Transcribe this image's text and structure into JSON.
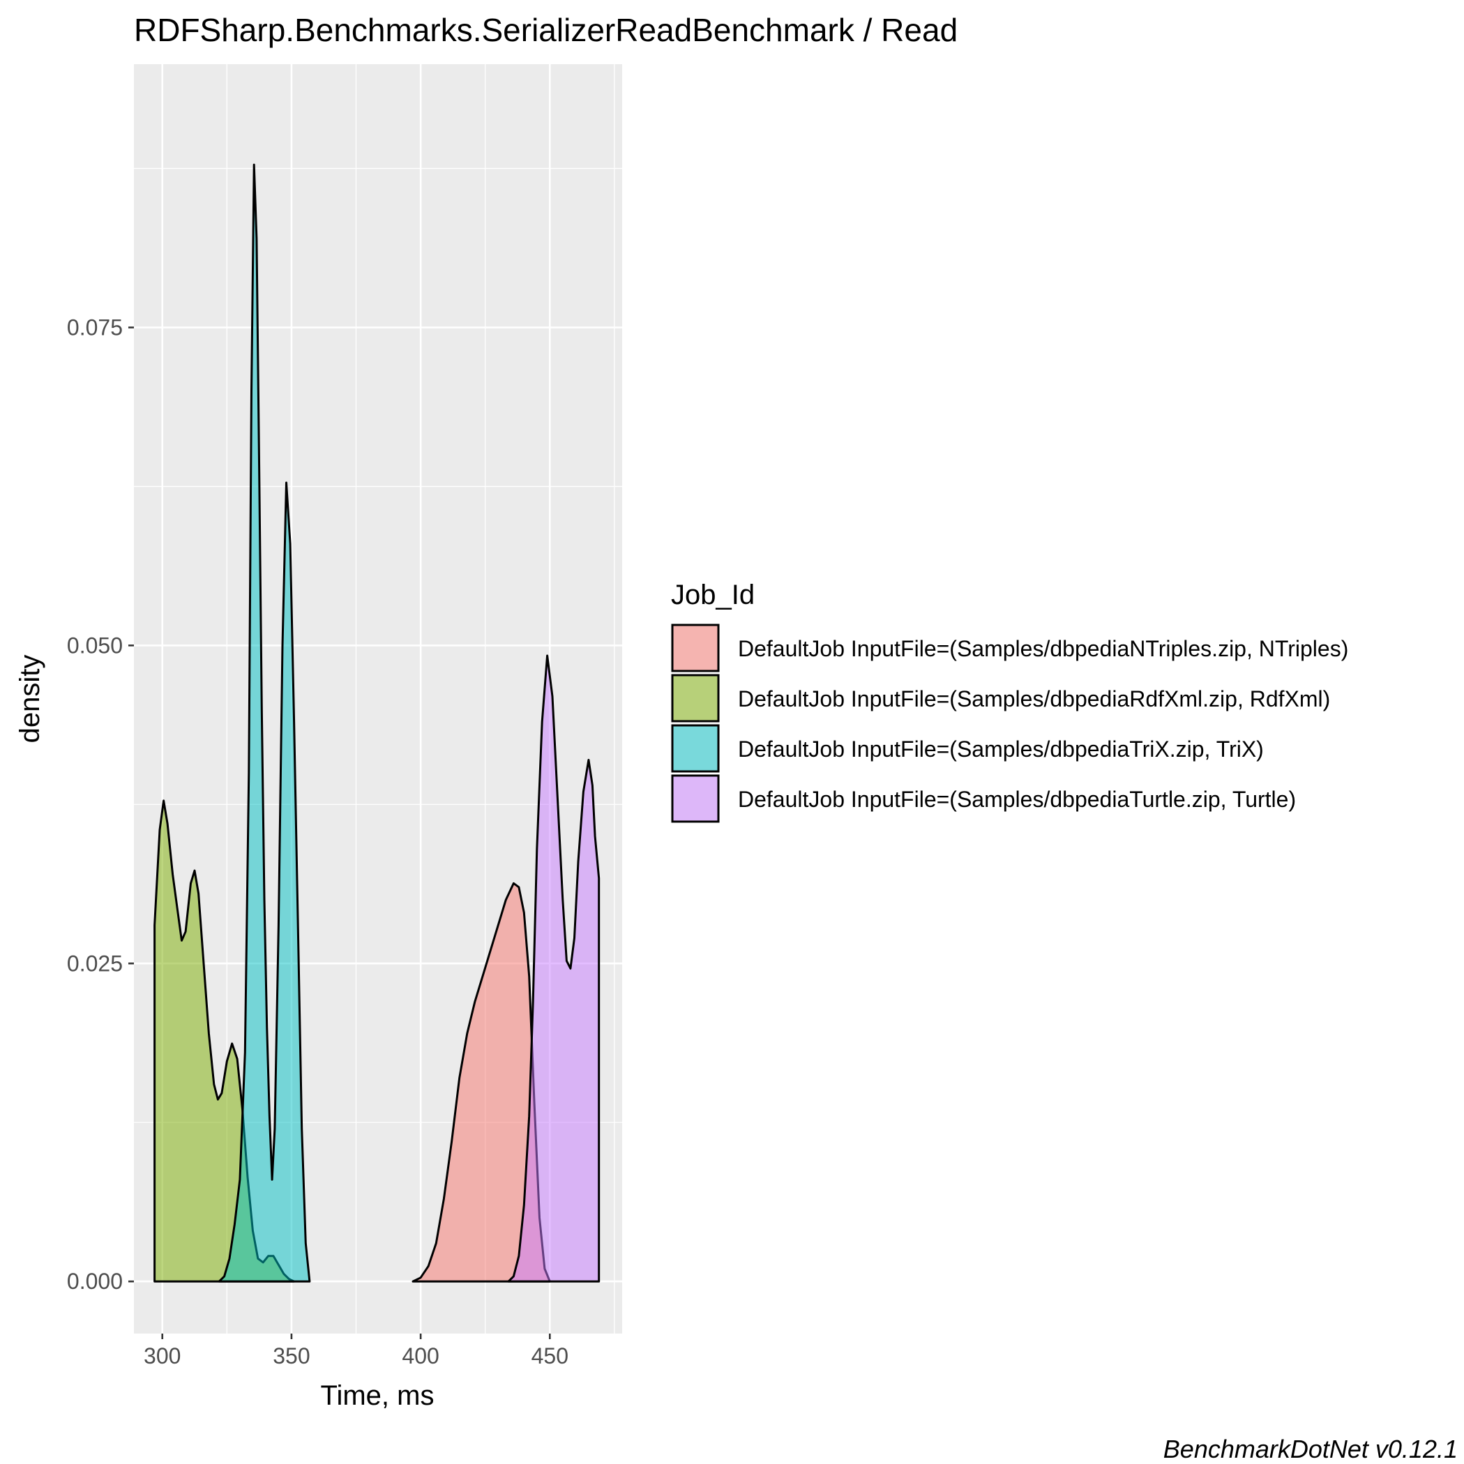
{
  "chart_data": {
    "type": "area",
    "title": "RDFSharp.Benchmarks.SerializerReadBenchmark / Read",
    "xlabel": "Time, ms",
    "ylabel": "density",
    "xlim": [
      289,
      478
    ],
    "ylim": [
      -0.0041,
      0.0957
    ],
    "x_ticks": [
      300,
      350,
      400,
      450
    ],
    "y_ticks": [
      0.0,
      0.025,
      0.05,
      0.075
    ],
    "y_tick_labels": [
      "0.000",
      "0.025",
      "0.050",
      "0.075"
    ],
    "grid": true,
    "legend": {
      "title": "Job_Id",
      "position": "right"
    },
    "caption": "BenchmarkDotNet v0.12.1",
    "series": [
      {
        "name": "DefaultJob InputFile=(Samples/dbpediaNTriples.zip, NTriples)",
        "color": "#F8766D",
        "points": [
          [
            397,
            0.0
          ],
          [
            400,
            0.0003
          ],
          [
            403,
            0.0012
          ],
          [
            406,
            0.003
          ],
          [
            409,
            0.0065
          ],
          [
            412,
            0.011
          ],
          [
            415,
            0.016
          ],
          [
            418,
            0.0195
          ],
          [
            421,
            0.022
          ],
          [
            424,
            0.024
          ],
          [
            427,
            0.026
          ],
          [
            430,
            0.028
          ],
          [
            433,
            0.03
          ],
          [
            436,
            0.0313
          ],
          [
            438,
            0.031
          ],
          [
            440,
            0.029
          ],
          [
            442,
            0.024
          ],
          [
            444,
            0.014
          ],
          [
            446,
            0.005
          ],
          [
            448,
            0.001
          ],
          [
            450,
            0.0
          ]
        ]
      },
      {
        "name": "DefaultJob InputFile=(Samples/dbpediaRdfXml.zip, RdfXml)",
        "color": "#7CAE00",
        "points": [
          [
            297,
            0.0
          ],
          [
            297,
            0.028
          ],
          [
            299,
            0.0355
          ],
          [
            300.5,
            0.0378
          ],
          [
            302,
            0.036
          ],
          [
            304,
            0.032
          ],
          [
            306,
            0.029
          ],
          [
            307.5,
            0.0268
          ],
          [
            309,
            0.0275
          ],
          [
            311,
            0.0313
          ],
          [
            312.5,
            0.0323
          ],
          [
            314,
            0.0305
          ],
          [
            316,
            0.025
          ],
          [
            318,
            0.0195
          ],
          [
            320,
            0.0155
          ],
          [
            321.5,
            0.0143
          ],
          [
            323,
            0.0148
          ],
          [
            325,
            0.0173
          ],
          [
            327,
            0.0187
          ],
          [
            329,
            0.0175
          ],
          [
            331,
            0.0135
          ],
          [
            333,
            0.0082
          ],
          [
            335,
            0.004
          ],
          [
            337,
            0.0018
          ],
          [
            339,
            0.0015
          ],
          [
            341,
            0.002
          ],
          [
            343,
            0.002
          ],
          [
            345,
            0.0013
          ],
          [
            347,
            0.0006
          ],
          [
            349,
            0.0002
          ],
          [
            351,
            0.0
          ]
        ]
      },
      {
        "name": "DefaultJob InputFile=(Samples/dbpediaTriX.zip, TriX)",
        "color": "#00BFC4",
        "points": [
          [
            322,
            0.0
          ],
          [
            324,
            0.0004
          ],
          [
            326,
            0.0018
          ],
          [
            328,
            0.0045
          ],
          [
            330,
            0.008
          ],
          [
            332,
            0.018
          ],
          [
            333.5,
            0.04
          ],
          [
            334.5,
            0.07
          ],
          [
            335.5,
            0.0878
          ],
          [
            336.5,
            0.082
          ],
          [
            337.5,
            0.064
          ],
          [
            338.5,
            0.045
          ],
          [
            339.5,
            0.03
          ],
          [
            340.5,
            0.02
          ],
          [
            341.5,
            0.013
          ],
          [
            342.5,
            0.008
          ],
          [
            343.5,
            0.012
          ],
          [
            345,
            0.028
          ],
          [
            346.5,
            0.05
          ],
          [
            348,
            0.0628
          ],
          [
            349.5,
            0.058
          ],
          [
            351,
            0.044
          ],
          [
            352.5,
            0.028
          ],
          [
            354,
            0.012
          ],
          [
            355.5,
            0.003
          ],
          [
            357,
            0.0
          ]
        ]
      },
      {
        "name": "DefaultJob InputFile=(Samples/dbpediaTurtle.zip, Turtle)",
        "color": "#C77CFF",
        "points": [
          [
            434,
            0.0
          ],
          [
            436,
            0.0004
          ],
          [
            438,
            0.002
          ],
          [
            440,
            0.006
          ],
          [
            442,
            0.013
          ],
          [
            443.5,
            0.022
          ],
          [
            445,
            0.034
          ],
          [
            447,
            0.044
          ],
          [
            449,
            0.0492
          ],
          [
            451,
            0.046
          ],
          [
            453,
            0.038
          ],
          [
            455,
            0.03
          ],
          [
            456.5,
            0.0252
          ],
          [
            458,
            0.0246
          ],
          [
            459.5,
            0.027
          ],
          [
            461,
            0.033
          ],
          [
            463,
            0.0385
          ],
          [
            465,
            0.041
          ],
          [
            466.5,
            0.039
          ],
          [
            467.5,
            0.035
          ],
          [
            469,
            0.0317
          ],
          [
            469,
            0.0
          ]
        ]
      }
    ]
  }
}
